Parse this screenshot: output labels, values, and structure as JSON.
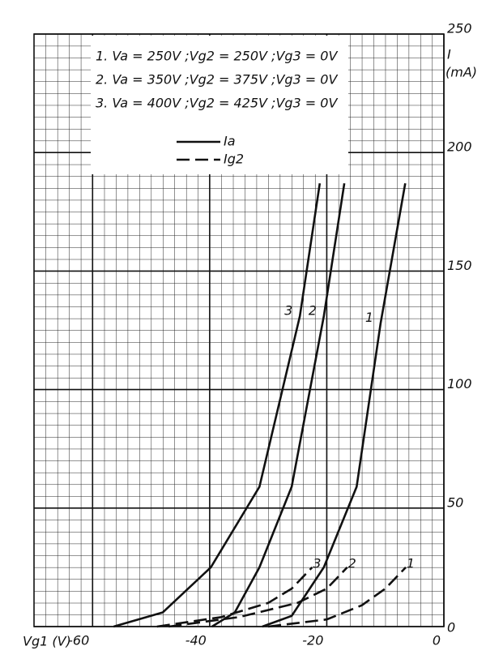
{
  "chart_data": {
    "type": "line",
    "xlabel": "Vg1 (V)",
    "ylabel": "I",
    "yunit": "(mA)",
    "xlim": [
      -70,
      0
    ],
    "ylim": [
      0,
      250
    ],
    "xticks": [
      -60,
      -40,
      -20,
      0
    ],
    "yticks": [
      0,
      50,
      100,
      150,
      200,
      250
    ],
    "grid": true,
    "legend": {
      "conditions": [
        "1.  Va = 250V ;Vg2 = 250V ;Vg3 = 0V",
        "2.  Va = 350V ;Vg2 = 375V ;Vg3 = 0V",
        "3.  Va = 400V ;Vg2 = 425V ;Vg3 = 0V"
      ],
      "entries": [
        {
          "name": "Ia",
          "dash": false
        },
        {
          "name": "Ig2",
          "dash": true
        }
      ]
    },
    "series": [
      {
        "name": "1",
        "dash": false,
        "color": "#111",
        "x": [
          -31,
          -26,
          -20.5,
          -14.9,
          -10.8,
          -6.6
        ],
        "values": [
          0,
          4.5,
          25,
          59,
          128,
          187
        ]
      },
      {
        "name": "2",
        "dash": false,
        "color": "#111",
        "x": [
          -39.6,
          -35.7,
          -31.5,
          -26,
          -20.5,
          -17
        ],
        "values": [
          0,
          6,
          25,
          59,
          131,
          187
        ]
      },
      {
        "name": "3",
        "dash": false,
        "color": "#111",
        "x": [
          -56.4,
          -48,
          -39.8,
          -31.5,
          -24.6,
          -21.2
        ],
        "values": [
          0,
          6,
          25,
          59,
          131,
          187
        ]
      },
      {
        "name": "1",
        "dash": true,
        "color": "#111",
        "x": [
          -30,
          -20,
          -14,
          -10,
          -6.5
        ],
        "values": [
          0,
          3,
          9,
          16,
          25
        ]
      },
      {
        "name": "2",
        "dash": true,
        "color": "#111",
        "x": [
          -47,
          -35,
          -25,
          -20,
          -16.5
        ],
        "values": [
          0,
          4,
          10,
          16,
          25
        ]
      },
      {
        "name": "3",
        "dash": true,
        "color": "#111",
        "x": [
          -49,
          -38,
          -30,
          -26,
          -22.5
        ],
        "values": [
          0,
          4,
          10,
          16,
          25
        ]
      }
    ]
  }
}
